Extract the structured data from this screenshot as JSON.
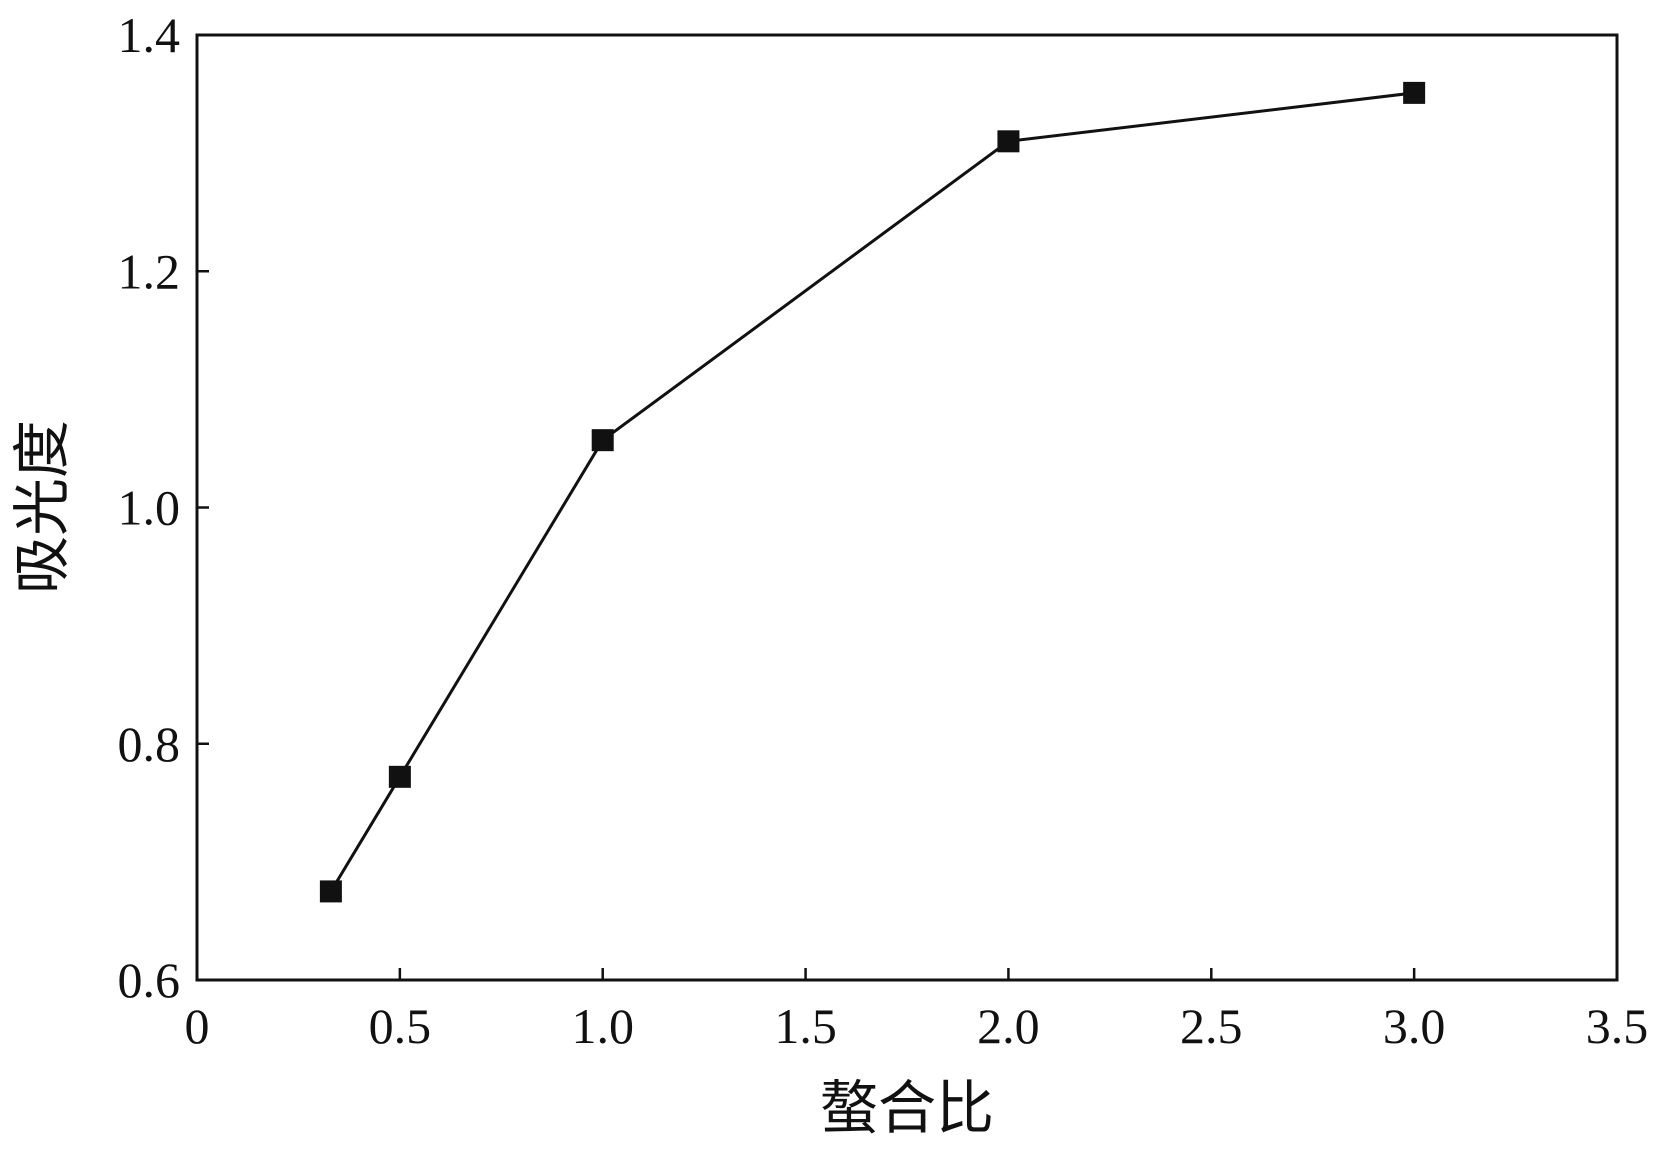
{
  "chart_data": {
    "type": "line",
    "title": "",
    "xlabel": "螯合比",
    "ylabel": "吸光度",
    "xlim": [
      0,
      3.5
    ],
    "ylim": [
      0.6,
      1.4
    ],
    "x_ticks": [
      "0",
      "0.5",
      "1.0",
      "1.5",
      "2.0",
      "2.5",
      "3.0",
      "3.5"
    ],
    "y_ticks": [
      "0.6",
      "0.8",
      "1.0",
      "1.2",
      "1.4"
    ],
    "grid": false,
    "legend": "none",
    "series": [
      {
        "marker": "square",
        "color": "#111111",
        "points": [
          {
            "x": 0.33,
            "y": 0.675
          },
          {
            "x": 0.5,
            "y": 0.772
          },
          {
            "x": 1.0,
            "y": 1.057
          },
          {
            "x": 2.0,
            "y": 1.31
          },
          {
            "x": 3.0,
            "y": 1.351
          }
        ]
      }
    ]
  }
}
